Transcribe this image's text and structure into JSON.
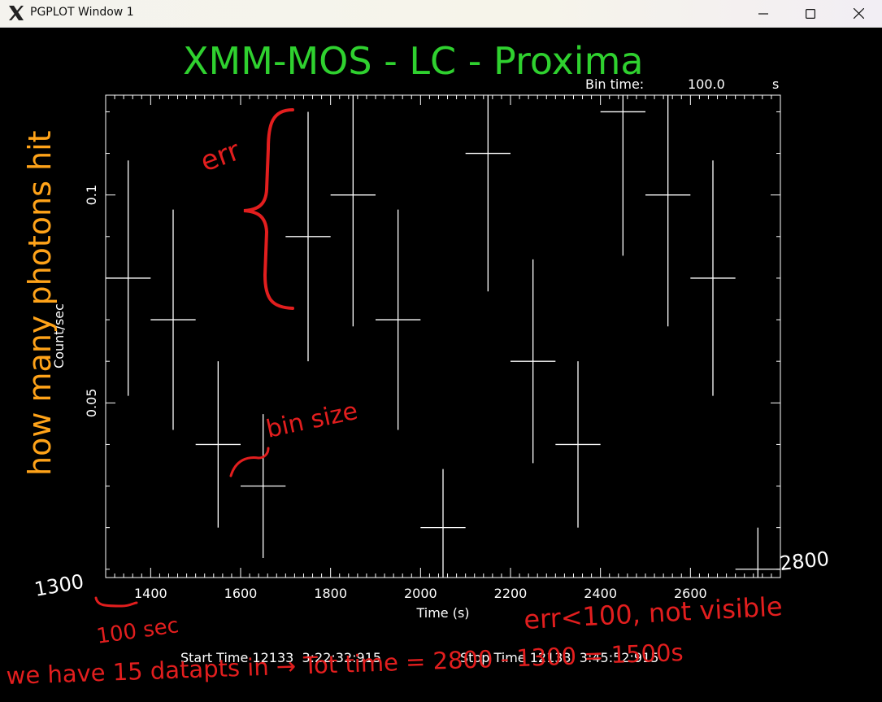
{
  "window": {
    "title": "PGPLOT Window 1",
    "icon": "x11-icon",
    "controls": [
      "minimize-icon",
      "maximize-icon",
      "close-icon"
    ]
  },
  "plot_info": {
    "bin_time_label": "Bin time:",
    "bin_time_value": "100.0",
    "bin_time_unit": "s",
    "start_time": "Start Time 12133  3:22:32:915",
    "stop_time": "Stop Time 12133  3:45:52:915"
  },
  "annotations": {
    "title": "XMM-MOS - LC - Proxima",
    "err": "err",
    "bin_size": "bin size",
    "photons": "how many photons hit",
    "x_start": "1300",
    "x_end": "2800",
    "hundred_sec": "100 sec",
    "err_note": "err<100, not visible",
    "summary": "we have 15 datapts in → Tot time = 2800 - 1300 = 1500s"
  },
  "colors": {
    "plot": "#ffffff",
    "annotation_green": "#2fd12f",
    "annotation_red": "#e21e1e",
    "annotation_orange": "#ffa319"
  },
  "chart_data": {
    "type": "scatter",
    "xlabel": "Time (s)",
    "ylabel": "Count/sec",
    "xlim": [
      1300,
      2800
    ],
    "ylim": [
      0.008,
      0.124
    ],
    "x_ticks": [
      1400,
      1600,
      1800,
      2000,
      2200,
      2400,
      2600
    ],
    "y_ticks": [
      0.05,
      0.1
    ],
    "grid": false,
    "series": [
      {
        "x": [
          1350,
          1450,
          1550,
          1650,
          1750,
          1850,
          1950,
          2050,
          2150,
          2250,
          2350,
          2450,
          2550,
          2650,
          2750
        ],
        "x_err": [
          50,
          50,
          50,
          50,
          50,
          50,
          50,
          50,
          50,
          50,
          50,
          50,
          50,
          50,
          50
        ],
        "y": [
          0.08,
          0.07,
          0.04,
          0.03,
          0.09,
          0.1,
          0.07,
          0.02,
          0.11,
          0.06,
          0.04,
          0.12,
          0.1,
          0.08,
          0.01
        ],
        "y_err": [
          0.0283,
          0.0265,
          0.02,
          0.0173,
          0.03,
          0.0316,
          0.0265,
          0.0141,
          0.0332,
          0.0245,
          0.02,
          0.0346,
          0.0316,
          0.0283,
          0.01
        ]
      }
    ]
  }
}
